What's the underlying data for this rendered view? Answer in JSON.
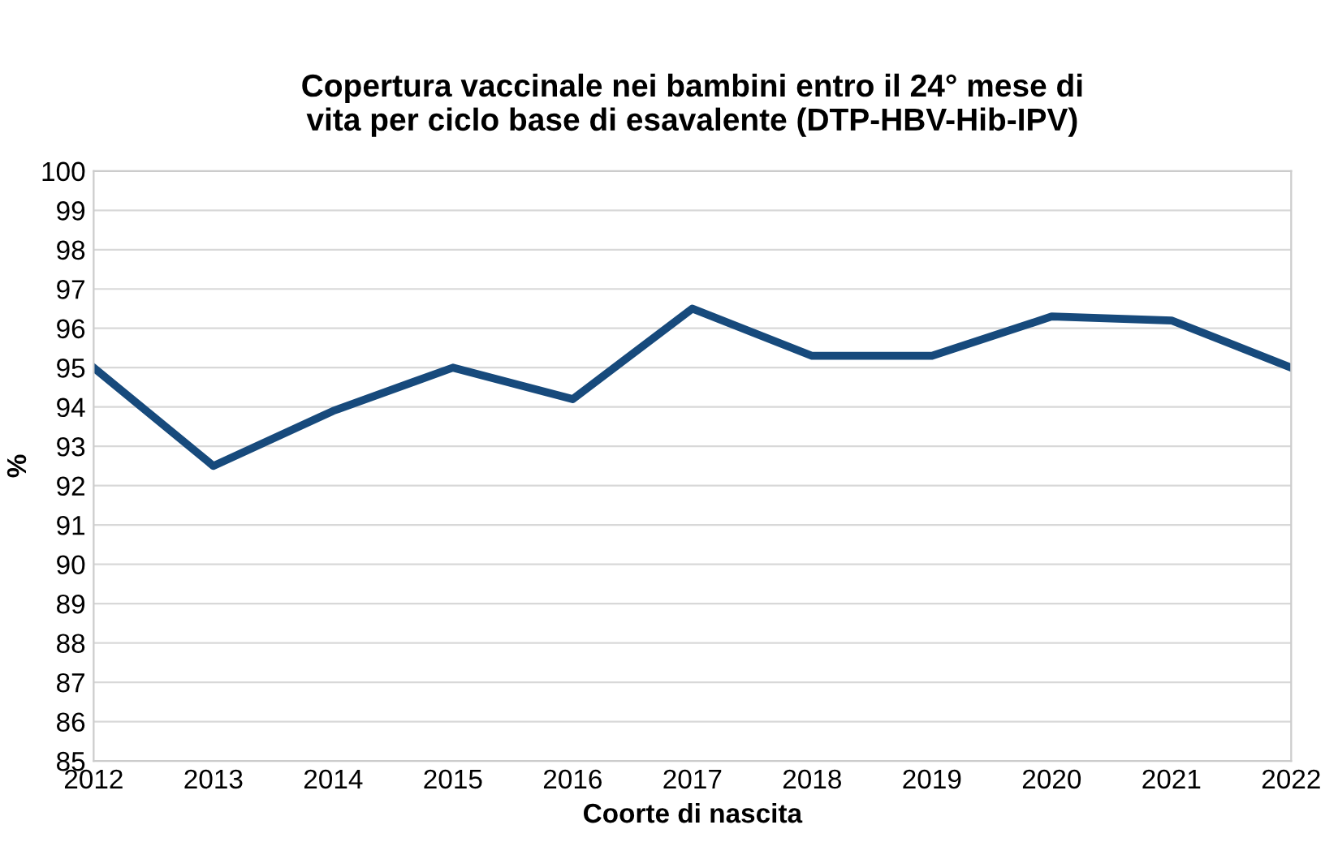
{
  "chart_data": {
    "type": "line",
    "title": "Copertura vaccinale nei bambini entro il 24° mese di\nvita per ciclo base di esavalente (DTP-HBV-Hib-IPV)",
    "xlabel": "Coorte di nascita",
    "ylabel": "%",
    "categories": [
      "2012",
      "2013",
      "2014",
      "2015",
      "2016",
      "2017",
      "2018",
      "2019",
      "2020",
      "2021",
      "2022"
    ],
    "series": [
      {
        "color": "#174a7c",
        "values": [
          95.0,
          92.5,
          93.9,
          95.0,
          94.2,
          96.5,
          95.3,
          95.3,
          96.3,
          96.2,
          95.0
        ]
      }
    ],
    "ylim": [
      85,
      100
    ],
    "yticks": [
      85,
      86,
      87,
      88,
      89,
      90,
      91,
      92,
      93,
      94,
      95,
      96,
      97,
      98,
      99,
      100
    ],
    "grid": "y",
    "marker": "none",
    "line_style": "solid"
  }
}
